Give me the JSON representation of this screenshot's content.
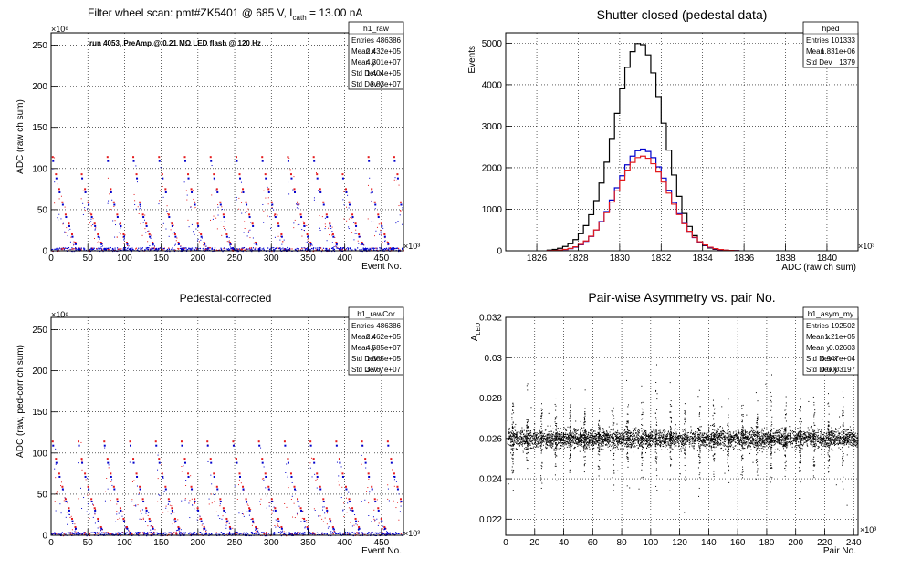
{
  "colors": {
    "red": "#e41a1c",
    "blue": "#0000cc",
    "black": "#000000"
  },
  "chart_data": [
    {
      "id": "raw",
      "type": "scatter",
      "title": "Filter wheel scan: pmt#ZK5401 @   685 V, I",
      "title_sub": "cath",
      "title_tail": " = 13.00 nA",
      "annotation": "run 4053, PreAmp @ 0.21 MΩ LED flash @  120 Hz",
      "xlabel": "Event No.",
      "ylabel": "ADC (raw ch sum)",
      "x_exponent": "×10³",
      "y_exponent": "×10⁶",
      "xlim": [
        0,
        480
      ],
      "ylim": [
        0,
        265
      ],
      "xticks": [
        0,
        50,
        100,
        150,
        200,
        250,
        300,
        350,
        400,
        450
      ],
      "yticks": [
        0,
        50,
        100,
        150,
        200,
        250
      ],
      "grid": true,
      "stats": {
        "name": "h1_raw",
        "rows": [
          [
            "Entries",
            "486386"
          ],
          [
            "Mean x",
            "2.432e+05"
          ],
          [
            "Mean y",
            "4.301e+07"
          ],
          [
            "Std Dev x",
            "1.404e+05"
          ],
          [
            "Std Dev y",
            "3.83e+07"
          ]
        ]
      },
      "levels": [
        {
          "y": 114,
          "color": "red"
        },
        {
          "y": 109,
          "color": "blue"
        },
        {
          "y": 93,
          "color": "red"
        },
        {
          "y": 88,
          "color": "blue"
        },
        {
          "y": 75,
          "color": "red"
        },
        {
          "y": 71,
          "color": "blue"
        },
        {
          "y": 59,
          "color": "red"
        },
        {
          "y": 56,
          "color": "blue"
        },
        {
          "y": 44,
          "color": "red"
        },
        {
          "y": 41,
          "color": "blue"
        },
        {
          "y": 33,
          "color": "red"
        },
        {
          "y": 30,
          "color": "blue"
        },
        {
          "y": 20,
          "color": "red"
        },
        {
          "y": 17,
          "color": "blue"
        },
        {
          "y": 10,
          "color": "red"
        },
        {
          "y": 8,
          "color": "blue"
        },
        {
          "y": 2,
          "color": "blue"
        }
      ],
      "cycle_period": 39.5,
      "n_levels_per_cycle": 9
    },
    {
      "id": "ped",
      "type": "line",
      "title": "Shutter closed (pedestal data)",
      "xlabel": "ADC (raw ch sum)",
      "ylabel": "Events",
      "x_exponent": "×10³",
      "xlim": [
        1824.5,
        1841.5
      ],
      "ylim": [
        0,
        5250
      ],
      "xticks": [
        1826,
        1828,
        1830,
        1832,
        1834,
        1836,
        1838,
        1840
      ],
      "yticks": [
        0,
        1000,
        2000,
        3000,
        4000,
        5000
      ],
      "grid": true,
      "stats": {
        "name": "hped",
        "rows": [
          [
            "Entries",
            "101333"
          ],
          [
            "Mean",
            "1.831e+06"
          ],
          [
            "Std Dev",
            "1379"
          ]
        ]
      },
      "series": [
        {
          "color": "black",
          "mean": 1831.0,
          "sigma": 1.15,
          "amp": 4950,
          "pedestal_shoulder": 320
        },
        {
          "color": "blue",
          "mean": 1831.1,
          "sigma": 1.25,
          "amp": 2450,
          "pedestal_shoulder": 0
        },
        {
          "color": "red",
          "mean": 1831.1,
          "sigma": 1.28,
          "amp": 2280,
          "pedestal_shoulder": 0
        }
      ]
    },
    {
      "id": "cor",
      "type": "scatter",
      "title": "Pedestal-corrected",
      "xlabel": "Event No.",
      "ylabel": "ADC (raw, ped-corr ch sum)",
      "x_exponent": "×10³",
      "y_exponent": "×10⁶",
      "xlim": [
        0,
        480
      ],
      "ylim": [
        0,
        265
      ],
      "xticks": [
        0,
        50,
        100,
        150,
        200,
        250,
        300,
        350,
        400,
        450
      ],
      "yticks": [
        0,
        50,
        100,
        150,
        200,
        250
      ],
      "grid": true,
      "stats": {
        "name": "h1_rawCor",
        "rows": [
          [
            "Entries",
            "486386"
          ],
          [
            "Mean x",
            "2.462e+05"
          ],
          [
            "Mean y",
            "4.585e+07"
          ],
          [
            "Std Dev x",
            "1.385e+05"
          ],
          [
            "Std Dev y",
            "3.767e+07"
          ]
        ]
      },
      "levels": [
        {
          "y": 114,
          "color": "red"
        },
        {
          "y": 109,
          "color": "blue"
        },
        {
          "y": 93,
          "color": "red"
        },
        {
          "y": 88,
          "color": "blue"
        },
        {
          "y": 75,
          "color": "red"
        },
        {
          "y": 71,
          "color": "blue"
        },
        {
          "y": 59,
          "color": "red"
        },
        {
          "y": 56,
          "color": "blue"
        },
        {
          "y": 44,
          "color": "red"
        },
        {
          "y": 41,
          "color": "blue"
        },
        {
          "y": 33,
          "color": "red"
        },
        {
          "y": 30,
          "color": "blue"
        },
        {
          "y": 20,
          "color": "red"
        },
        {
          "y": 17,
          "color": "blue"
        },
        {
          "y": 10,
          "color": "red"
        },
        {
          "y": 8,
          "color": "blue"
        }
      ],
      "cycle_period": 39.5,
      "n_levels_per_cycle": 9
    },
    {
      "id": "asym",
      "type": "scatter",
      "title": "Pair-wise Asymmetry vs. pair No.",
      "xlabel": "Pair No.",
      "ylabel": "A",
      "ylabel_sub": "LED",
      "x_exponent": "×10³",
      "xlim": [
        0,
        243
      ],
      "ylim": [
        0.0212,
        0.032
      ],
      "xticks": [
        0,
        20,
        40,
        60,
        80,
        100,
        120,
        140,
        160,
        180,
        200,
        220,
        240
      ],
      "yticks": [
        0.022,
        0.024,
        0.026,
        0.028,
        0.03,
        0.032
      ],
      "ytick_labels": [
        "0.022",
        "0.024",
        "0.026",
        "0.028",
        "0.03",
        "0.032"
      ],
      "grid": true,
      "stats": {
        "name": "h1_asym_my",
        "rows": [
          [
            "Entries",
            "192502"
          ],
          [
            "Mean x",
            "1.21e+05"
          ],
          [
            "Mean y",
            "0.02603"
          ],
          [
            "Std Dev x",
            "6.947e+04"
          ],
          [
            "Std Dev y",
            "0.0003197"
          ]
        ]
      },
      "band_center": 0.026,
      "band_halfwidth": 0.0004,
      "spike_period": 9.9
    }
  ]
}
